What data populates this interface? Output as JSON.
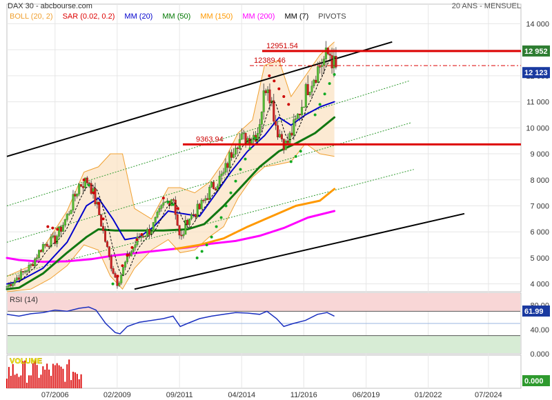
{
  "header": {
    "source": "DAX 30 - abcbourse.com",
    "period": "20 ANS - MENSUEL",
    "legend": [
      {
        "label": "BOLL (20, 2)",
        "color": "#f0a030"
      },
      {
        "label": "SAR (0.02, 0.2)",
        "color": "#dd0000"
      },
      {
        "label": "MM (20)",
        "color": "#0000cc"
      },
      {
        "label": "MM (50)",
        "color": "#007700"
      },
      {
        "label": "MM (150)",
        "color": "#ff9900"
      },
      {
        "label": "MM (200)",
        "color": "#ff00ff"
      },
      {
        "label": "MM (7)",
        "color": "#000000"
      },
      {
        "label": "PIVOTS",
        "color": "#444444"
      }
    ]
  },
  "chart_data": {
    "type": "candlestick",
    "price_axis": {
      "ticks": [
        "14 000",
        "13 000",
        "12 000",
        "11 000",
        "10 000",
        "9 000",
        "8 000",
        "7 000",
        "6 000",
        "5 000",
        "4 000"
      ],
      "ylim": [
        3700,
        14700
      ]
    },
    "time_axis": {
      "ticks": [
        "07/2006",
        "02/2009",
        "09/2011",
        "04/2014",
        "11/2016",
        "06/2019",
        "01/2022",
        "07/2024"
      ]
    },
    "current_price": {
      "value": 12123,
      "label": "12 123",
      "color": "#1a3aa0"
    },
    "resistance_tag": {
      "value": 12952,
      "label": "12 952",
      "color": "#2e7d32"
    },
    "levels": [
      {
        "label": "12951.54",
        "value": 12951.54,
        "style": "solid",
        "color": "#dd0000"
      },
      {
        "label": "12389.46",
        "value": 12389.46,
        "style": "dashdot",
        "color": "#dd0000"
      },
      {
        "label": "9363.94",
        "value": 9363.94,
        "style": "solid",
        "color": "#dd0000"
      }
    ],
    "price_path": [
      [
        2004.5,
        3900
      ],
      [
        2005,
        4300
      ],
      [
        2005.5,
        4700
      ],
      [
        2006,
        5500
      ],
      [
        2006.5,
        5700
      ],
      [
        2007,
        6600
      ],
      [
        2007.5,
        7800
      ],
      [
        2007.9,
        8000
      ],
      [
        2008.3,
        6800
      ],
      [
        2008.8,
        4800
      ],
      [
        2009.1,
        4000
      ],
      [
        2009.5,
        5000
      ],
      [
        2010,
        5800
      ],
      [
        2010.5,
        6100
      ],
      [
        2011,
        7000
      ],
      [
        2011.4,
        7400
      ],
      [
        2011.7,
        5600
      ],
      [
        2012,
        6500
      ],
      [
        2012.5,
        6900
      ],
      [
        2013,
        7700
      ],
      [
        2013.5,
        8200
      ],
      [
        2014,
        9500
      ],
      [
        2014.5,
        9600
      ],
      [
        2014.9,
        9800
      ],
      [
        2015.3,
        11900
      ],
      [
        2015.7,
        10000
      ],
      [
        2016.1,
        9300
      ],
      [
        2016.5,
        10200
      ],
      [
        2017,
        11600
      ],
      [
        2017.5,
        12400
      ],
      [
        2017.9,
        12900
      ],
      [
        2018.2,
        12100
      ]
    ],
    "sar_dots": [
      [
        2006.2,
        6200
      ],
      [
        2006.4,
        6150
      ],
      [
        2006.6,
        6100
      ],
      [
        2007.7,
        8000
      ],
      [
        2007.9,
        7800
      ],
      [
        2008.1,
        7500
      ],
      [
        2008.3,
        7100
      ],
      [
        2008.5,
        6500
      ],
      [
        2008.9,
        4000
      ],
      [
        2009.1,
        4300
      ],
      [
        2009.3,
        4700
      ],
      [
        2009.5,
        5100
      ],
      [
        2009.7,
        5400
      ],
      [
        2009.9,
        5700
      ],
      [
        2010.1,
        5900
      ],
      [
        2011.0,
        7300
      ],
      [
        2011.2,
        7150
      ],
      [
        2011.4,
        7050
      ],
      [
        2011.6,
        6900
      ],
      [
        2012.4,
        5000
      ],
      [
        2012.6,
        5250
      ],
      [
        2012.8,
        5500
      ],
      [
        2013.0,
        5800
      ],
      [
        2013.2,
        6200
      ],
      [
        2013.4,
        6550
      ],
      [
        2013.6,
        7000
      ],
      [
        2013.8,
        7500
      ],
      [
        2014.0,
        7950
      ],
      [
        2014.2,
        8400
      ],
      [
        2014.4,
        8800
      ],
      [
        2014.6,
        9200
      ],
      [
        2014.8,
        9600
      ],
      [
        2015.4,
        12000
      ],
      [
        2015.6,
        11800
      ],
      [
        2015.8,
        11500
      ],
      [
        2016.0,
        11200
      ],
      [
        2016.2,
        10900
      ],
      [
        2016.3,
        8700
      ],
      [
        2016.5,
        8900
      ],
      [
        2016.7,
        9100
      ],
      [
        2017.3,
        10500
      ],
      [
        2017.5,
        10900
      ],
      [
        2017.7,
        11300
      ],
      [
        2017.9,
        11700
      ],
      [
        2018.1,
        12050
      ]
    ],
    "ma20": [
      [
        2004.5,
        4000
      ],
      [
        2005,
        4100
      ],
      [
        2006,
        4600
      ],
      [
        2007,
        5600
      ],
      [
        2007.8,
        7000
      ],
      [
        2008.3,
        7300
      ],
      [
        2008.9,
        6500
      ],
      [
        2009.4,
        5700
      ],
      [
        2010,
        5800
      ],
      [
        2010.6,
        6200
      ],
      [
        2011.2,
        6800
      ],
      [
        2011.8,
        6700
      ],
      [
        2012.5,
        6600
      ],
      [
        2013.2,
        7500
      ],
      [
        2013.8,
        8300
      ],
      [
        2014.5,
        9100
      ],
      [
        2015.2,
        9700
      ],
      [
        2015.8,
        10400
      ],
      [
        2016.3,
        10100
      ],
      [
        2016.9,
        10500
      ],
      [
        2017.5,
        10800
      ],
      [
        2018.1,
        11000
      ]
    ],
    "ma50": [
      [
        2004.5,
        3800
      ],
      [
        2005,
        3850
      ],
      [
        2006,
        4400
      ],
      [
        2007,
        5200
      ],
      [
        2007.8,
        5800
      ],
      [
        2008.3,
        6100
      ],
      [
        2009,
        6050
      ],
      [
        2010,
        6050
      ],
      [
        2011,
        6050
      ],
      [
        2012,
        6100
      ],
      [
        2012.7,
        6300
      ],
      [
        2013.5,
        7000
      ],
      [
        2014.3,
        7800
      ],
      [
        2015,
        8500
      ],
      [
        2015.8,
        9100
      ],
      [
        2016.5,
        9400
      ],
      [
        2017.3,
        9800
      ],
      [
        2018.1,
        10400
      ]
    ],
    "ma150": [
      [
        2011.5,
        5350
      ],
      [
        2012.5,
        5500
      ],
      [
        2013.5,
        5750
      ],
      [
        2014.5,
        6200
      ],
      [
        2015.5,
        6600
      ],
      [
        2016.5,
        7000
      ],
      [
        2017.5,
        7200
      ],
      [
        2018.1,
        7650
      ]
    ],
    "ma200": [
      [
        2004.5,
        5000
      ],
      [
        2005,
        4920
      ],
      [
        2006,
        4850
      ],
      [
        2007,
        4870
      ],
      [
        2008,
        4950
      ],
      [
        2009,
        5100
      ],
      [
        2010,
        5200
      ],
      [
        2011,
        5300
      ],
      [
        2012,
        5400
      ],
      [
        2013,
        5550
      ],
      [
        2014,
        5650
      ],
      [
        2015,
        5850
      ],
      [
        2016,
        6150
      ],
      [
        2017,
        6550
      ],
      [
        2018.1,
        6800
      ]
    ],
    "channel": {
      "upper": [
        [
          2004.5,
          8900
        ],
        [
          2020.5,
          13300
        ]
      ],
      "lower": [
        [
          2009.8,
          3800
        ],
        [
          2023.5,
          6700
        ]
      ],
      "mid_lines": [
        [
          [
            2004.5,
            7000
          ],
          [
            2021.2,
            11800
          ]
        ],
        [
          [
            2004.5,
            5600
          ],
          [
            2021.3,
            10200
          ]
        ],
        [
          [
            2004.5,
            4300
          ],
          [
            2021.4,
            8400
          ]
        ]
      ]
    },
    "bollinger": {
      "upper": [
        [
          2004.5,
          4300
        ],
        [
          2005.5,
          4700
        ],
        [
          2006.3,
          5800
        ],
        [
          2007.0,
          6800
        ],
        [
          2007.7,
          8300
        ],
        [
          2008.3,
          8500
        ],
        [
          2008.8,
          9000
        ],
        [
          2009.3,
          9000
        ],
        [
          2009.8,
          6900
        ],
        [
          2010.5,
          6500
        ],
        [
          2011.2,
          7700
        ],
        [
          2011.7,
          7700
        ],
        [
          2012.3,
          7500
        ],
        [
          2012.9,
          7900
        ],
        [
          2013.5,
          8700
        ],
        [
          2014.1,
          9800
        ],
        [
          2014.7,
          10300
        ],
        [
          2015.2,
          12400
        ],
        [
          2015.8,
          12600
        ],
        [
          2016.3,
          11200
        ],
        [
          2016.9,
          12000
        ],
        [
          2017.5,
          12800
        ],
        [
          2018.1,
          13300
        ]
      ],
      "lower": [
        [
          2004.5,
          3700
        ],
        [
          2005.5,
          3800
        ],
        [
          2006.3,
          4200
        ],
        [
          2007.0,
          4700
        ],
        [
          2007.7,
          5500
        ],
        [
          2008.3,
          5300
        ],
        [
          2008.8,
          4300
        ],
        [
          2009.3,
          3800
        ],
        [
          2009.8,
          4600
        ],
        [
          2010.5,
          5300
        ],
        [
          2011.2,
          5700
        ],
        [
          2011.7,
          5200
        ],
        [
          2012.3,
          5300
        ],
        [
          2012.9,
          5800
        ],
        [
          2013.5,
          6200
        ],
        [
          2014.1,
          7300
        ],
        [
          2014.7,
          8100
        ],
        [
          2015.2,
          8500
        ],
        [
          2015.8,
          8600
        ],
        [
          2016.3,
          8700
        ],
        [
          2016.9,
          9400
        ],
        [
          2017.5,
          9000
        ],
        [
          2018.1,
          8900
        ]
      ]
    },
    "rsi": {
      "label": "RSI (14)",
      "value_label": "61.99",
      "ticks": [
        "80.00",
        "40.00",
        "0.000"
      ],
      "overbought": 70,
      "oversold": 30,
      "ylim": [
        0,
        100
      ],
      "series": [
        [
          2004.5,
          65
        ],
        [
          2005,
          62
        ],
        [
          2005.5,
          66
        ],
        [
          2006,
          68
        ],
        [
          2006.5,
          72
        ],
        [
          2007,
          70
        ],
        [
          2007.5,
          75
        ],
        [
          2007.9,
          77
        ],
        [
          2008.2,
          72
        ],
        [
          2008.6,
          50
        ],
        [
          2009.0,
          35
        ],
        [
          2009.2,
          33
        ],
        [
          2009.5,
          45
        ],
        [
          2010,
          52
        ],
        [
          2010.5,
          55
        ],
        [
          2011,
          58
        ],
        [
          2011.4,
          62
        ],
        [
          2011.7,
          45
        ],
        [
          2012,
          50
        ],
        [
          2012.5,
          58
        ],
        [
          2013,
          62
        ],
        [
          2013.5,
          65
        ],
        [
          2014,
          68
        ],
        [
          2014.5,
          67
        ],
        [
          2015.0,
          65
        ],
        [
          2015.3,
          70
        ],
        [
          2015.7,
          58
        ],
        [
          2016.0,
          45
        ],
        [
          2016.4,
          50
        ],
        [
          2016.9,
          55
        ],
        [
          2017.4,
          65
        ],
        [
          2017.8,
          68
        ],
        [
          2018.1,
          62
        ]
      ]
    },
    "volume": {
      "label": "VOLUME",
      "value_label": "0.000"
    }
  }
}
